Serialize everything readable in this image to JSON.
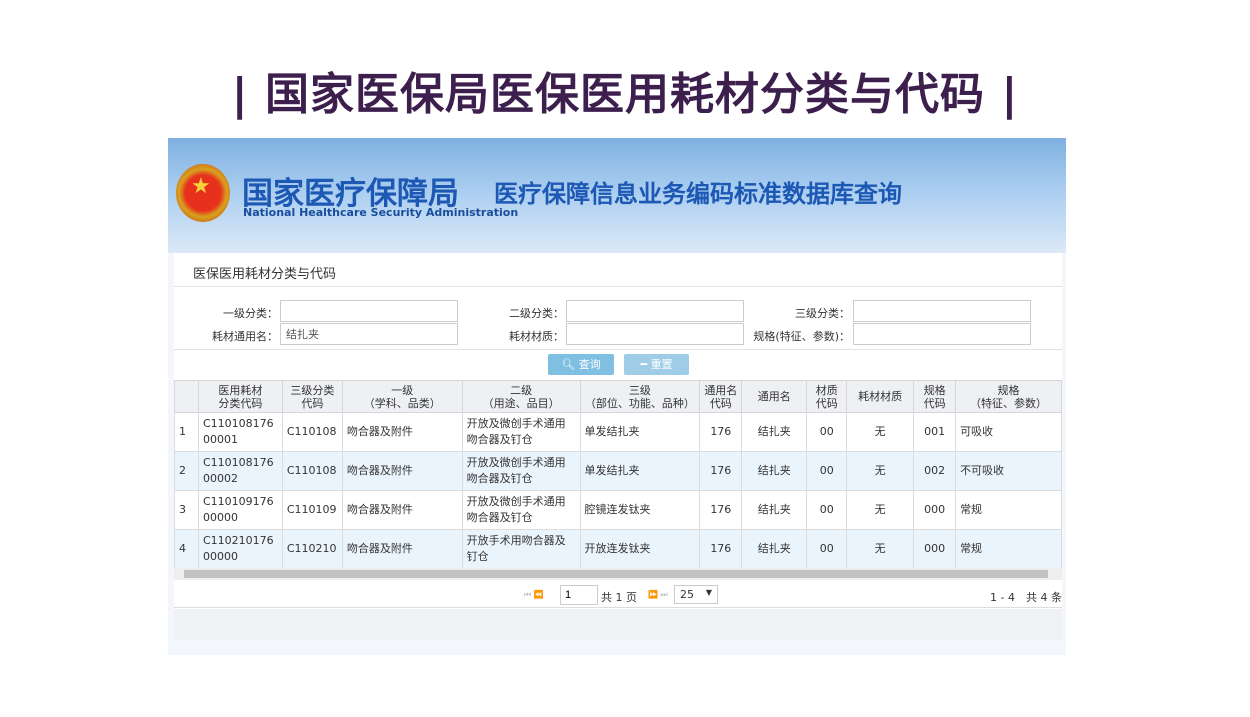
{
  "slide_title": "| 国家医保局医保医用耗材分类与代码 |",
  "banner": {
    "cn_title": "国家医疗保障局",
    "subtitle": "医疗保障信息业务编码标准数据库查询",
    "en_title": "National Healthcare Security Administration",
    "emblem": "★"
  },
  "panel_title": "医保医用耗材分类与代码",
  "form": {
    "level1_label": "一级分类：",
    "level1_value": "",
    "level2_label": "二级分类：",
    "level2_value": "",
    "level3_label": "三级分类：",
    "level3_value": "",
    "generic_name_label": "耗材通用名：",
    "generic_name_value": "结扎夹",
    "material_label": "耗材材质：",
    "material_value": "",
    "spec_label": "规格(特征、参数)：",
    "spec_value": ""
  },
  "buttons": {
    "search": "查询",
    "search_icon": "search-icon",
    "reset": "重置",
    "reset_icon": "minus-icon"
  },
  "colors": {
    "button": "#7fbfe2",
    "title": "#3d1f4e",
    "row_alt": "#eaf4fc"
  },
  "table": {
    "headers": [
      "",
      "医用耗材\n分类代码",
      "三级分类\n代码",
      "一级\n（学科、品类）",
      "二级\n（用途、品目）",
      "三级\n（部位、功能、品种）",
      "通用名\n代码",
      "通用名",
      "材质\n代码",
      "耗材材质",
      "规格\n代码",
      "规格\n（特征、参数）"
    ],
    "rows": [
      [
        "1",
        "C11010817600001",
        "C110108",
        "吻合器及附件",
        "开放及微创手术通用吻合器及钉仓",
        "单发结扎夹",
        "176",
        "结扎夹",
        "00",
        "无",
        "001",
        "可吸收"
      ],
      [
        "2",
        "C11010817600002",
        "C110108",
        "吻合器及附件",
        "开放及微创手术通用吻合器及钉仓",
        "单发结扎夹",
        "176",
        "结扎夹",
        "00",
        "无",
        "002",
        "不可吸收"
      ],
      [
        "3",
        "C11010917600000",
        "C110109",
        "吻合器及附件",
        "开放及微创手术通用吻合器及钉仓",
        "腔镜连发钛夹",
        "176",
        "结扎夹",
        "00",
        "无",
        "000",
        "常规"
      ],
      [
        "4",
        "C11021017600000",
        "C110210",
        "吻合器及附件",
        "开放手术用吻合器及钉仓",
        "开放连发钛夹",
        "176",
        "结扎夹",
        "00",
        "无",
        "000",
        "常规"
      ]
    ]
  },
  "pager": {
    "page": "1",
    "total_pages": "共 1 页",
    "page_size": "25",
    "summary": "1 - 4　共 4 条"
  }
}
